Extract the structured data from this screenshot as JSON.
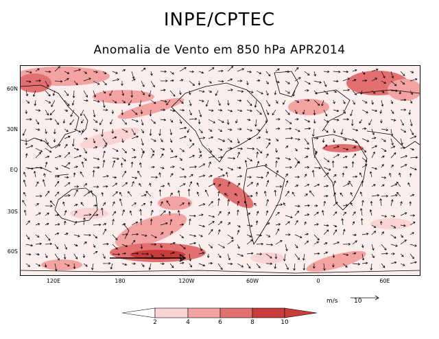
{
  "header": {
    "title": "INPE/CPTEC",
    "subtitle": "Anomalia de Vento em 850 hPa APR2014"
  },
  "map": {
    "latitude_labels": [
      "60N",
      "30N",
      "EQ",
      "30S",
      "60S"
    ],
    "longitude_labels": [
      "120E",
      "180",
      "120W",
      "60W",
      "0",
      "60E"
    ],
    "shading_color_low": "#fde4e4",
    "shading_color_high": "#c83c3c"
  },
  "legend": {
    "labels": [
      "2",
      "4",
      "6",
      "8",
      "10"
    ],
    "colors": [
      "#ffffff",
      "#fbd3d3",
      "#f4a3a3",
      "#e27070",
      "#c83c3c"
    ]
  },
  "reference_vector": {
    "units": "m/s",
    "value": "10"
  }
}
